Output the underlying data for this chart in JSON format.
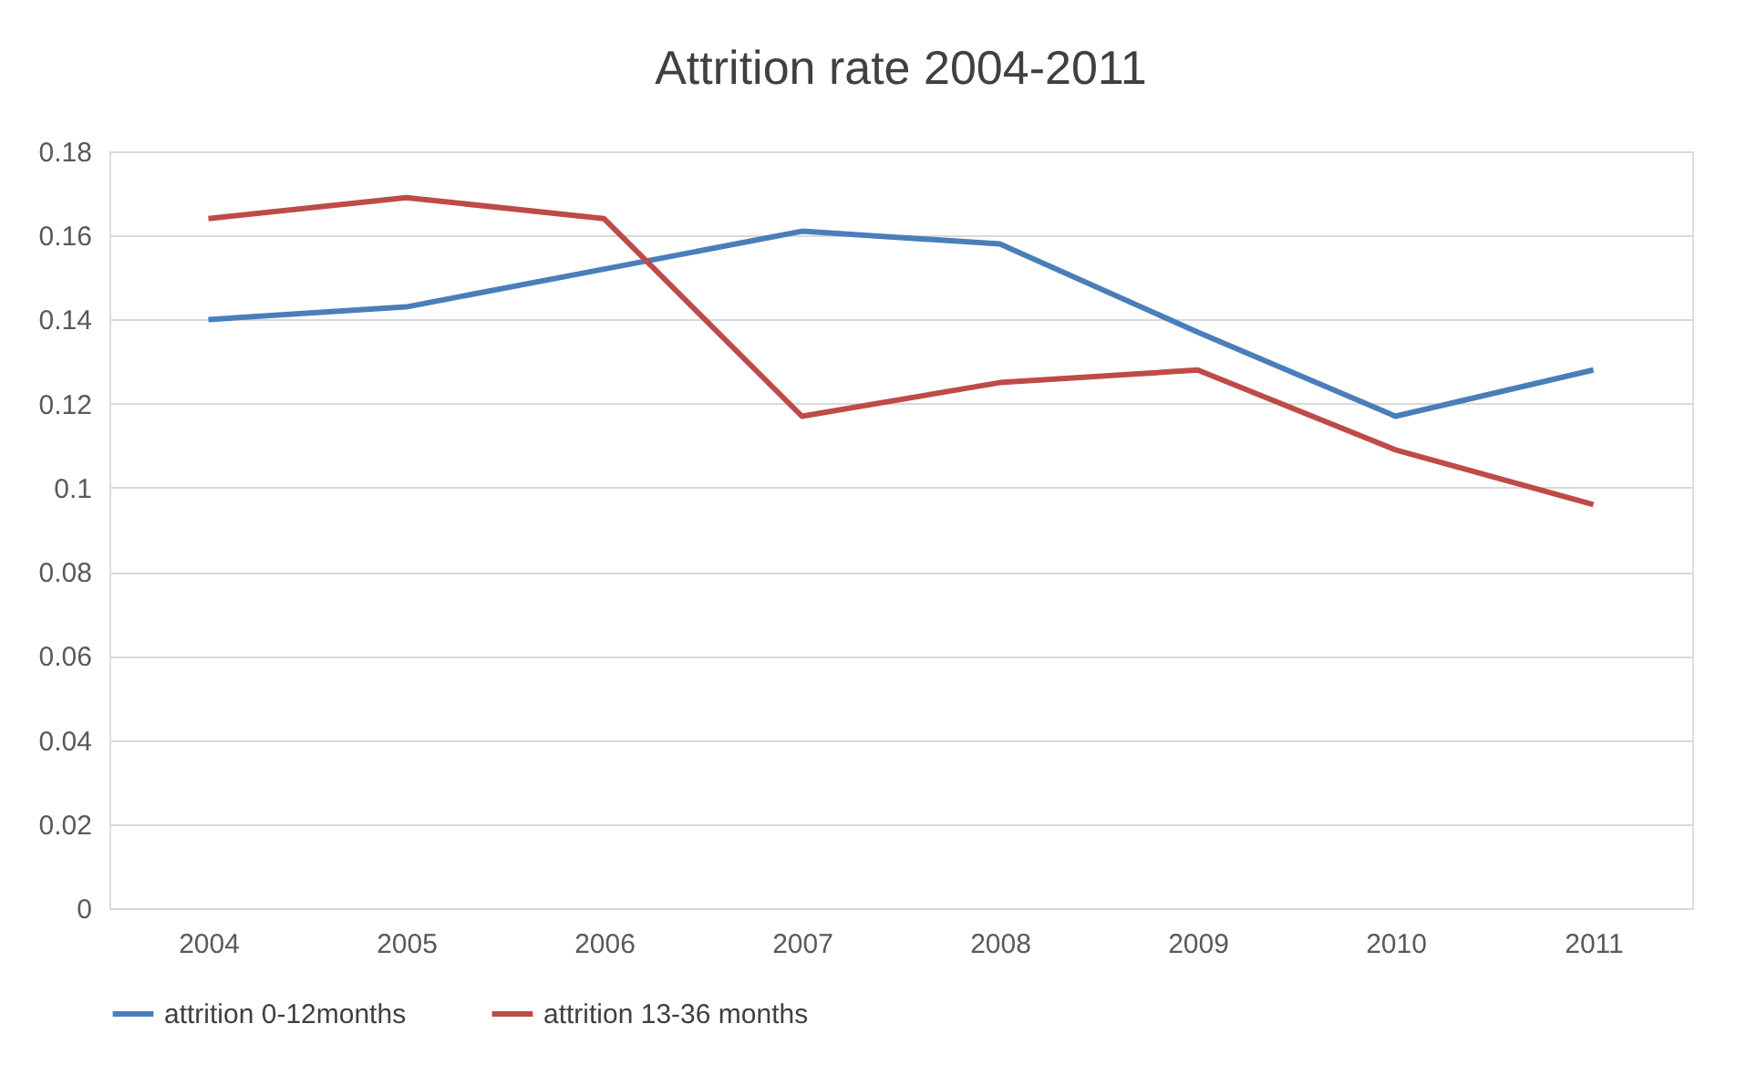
{
  "chart_data": {
    "type": "line",
    "title": "Attrition rate 2004-2011",
    "categories": [
      "2004",
      "2005",
      "2006",
      "2007",
      "2008",
      "2009",
      "2010",
      "2011"
    ],
    "series": [
      {
        "name": "attrition 0-12months",
        "color": "#4a7ebb",
        "values": [
          0.14,
          0.143,
          0.152,
          0.161,
          0.158,
          0.137,
          0.117,
          0.128
        ]
      },
      {
        "name": "attrition 13-36 months",
        "color": "#be4b48",
        "values": [
          0.164,
          0.169,
          0.164,
          0.117,
          0.125,
          0.128,
          0.109,
          0.096
        ]
      }
    ],
    "ylim": [
      0,
      0.18
    ],
    "yticks": [
      0,
      0.02,
      0.04,
      0.06,
      0.08,
      0.1,
      0.12,
      0.14,
      0.16,
      0.18
    ],
    "grid": "y",
    "legend": "bottom",
    "marker": "none",
    "line_style": "solid"
  }
}
